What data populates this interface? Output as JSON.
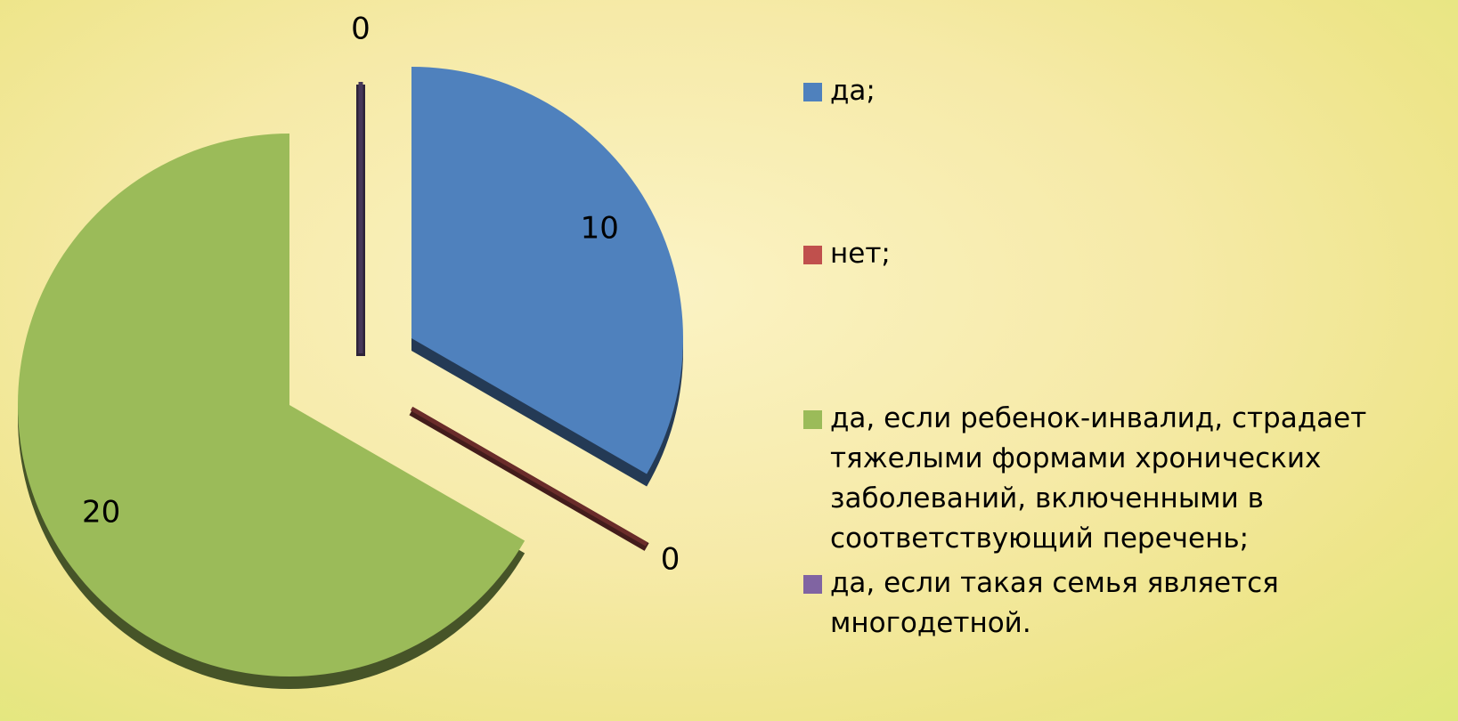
{
  "chart_data": {
    "type": "pie",
    "categories": [
      "да;",
      "нет;",
      "да, если ребенок-инвалид, страдает тяжелыми формами хронических заболеваний, включенными в соответствующий перечень;",
      "да, если такая семья является многодетной."
    ],
    "values": [
      10,
      0,
      20,
      0
    ],
    "colors": [
      "#4f81bd",
      "#c0504d",
      "#9bbb59",
      "#8064a2"
    ],
    "legend": "right"
  }
}
